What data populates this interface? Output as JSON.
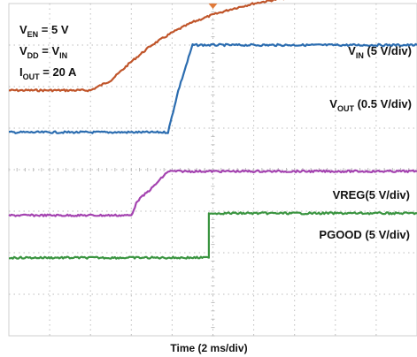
{
  "chart_data": {
    "type": "line",
    "title": "",
    "xlabel": "Time (2 ms/div)",
    "ylabel": "",
    "grid": true,
    "x_divisions": 10,
    "y_divisions": 8,
    "xlim": [
      0,
      20
    ],
    "x_unit": "ms",
    "annotations": {
      "conditions": [
        {
          "base": "V",
          "sub": "EN",
          "rest": " = 5 V"
        },
        {
          "base": "V",
          "sub": "DD",
          "rest": " = V",
          "sub2": "IN"
        },
        {
          "base": "I",
          "sub": "OUT",
          "rest": " = 20 A"
        }
      ]
    },
    "series": [
      {
        "name": "VIN",
        "label": {
          "base": "V",
          "sub": "IN",
          "rest": " (5 V/div)"
        },
        "color": "#c0552a",
        "x_ms": [
          0,
          2,
          4,
          5,
          6,
          7,
          8,
          9,
          10,
          11,
          12,
          13,
          14,
          15,
          16,
          17,
          18,
          19,
          20
        ],
        "y_div": [
          5.91,
          5.91,
          5.91,
          6.15,
          6.6,
          7.0,
          7.3,
          7.55,
          7.73,
          7.88,
          8.0,
          8.09,
          8.16,
          8.22,
          8.27,
          8.3,
          8.32,
          8.33,
          8.34
        ]
      },
      {
        "name": "VOUT",
        "label": {
          "base": "V",
          "sub": "OUT",
          "rest": " (0.5 V/div)"
        },
        "color": "#2c6db0",
        "x_ms": [
          0,
          7.8,
          8.3,
          9.0,
          20
        ],
        "y_div": [
          4.9,
          4.9,
          5.9,
          7.0,
          7.0
        ]
      },
      {
        "name": "VREG",
        "label": {
          "base": "VREG",
          "sub": "",
          "rest": "(5 V/div)"
        },
        "color": "#a443b0",
        "x_ms": [
          0,
          6.0,
          6.3,
          7.0,
          7.8,
          20
        ],
        "y_div": [
          2.9,
          2.9,
          3.25,
          3.55,
          3.96,
          3.96
        ]
      },
      {
        "name": "PGOOD",
        "label": {
          "base": "PGOOD",
          "sub": "",
          "rest": " (5 V/div)"
        },
        "color": "#3a9440",
        "x_ms": [
          0,
          9.8,
          9.8,
          20
        ],
        "y_div": [
          1.88,
          1.88,
          2.95,
          2.95
        ]
      }
    ]
  }
}
